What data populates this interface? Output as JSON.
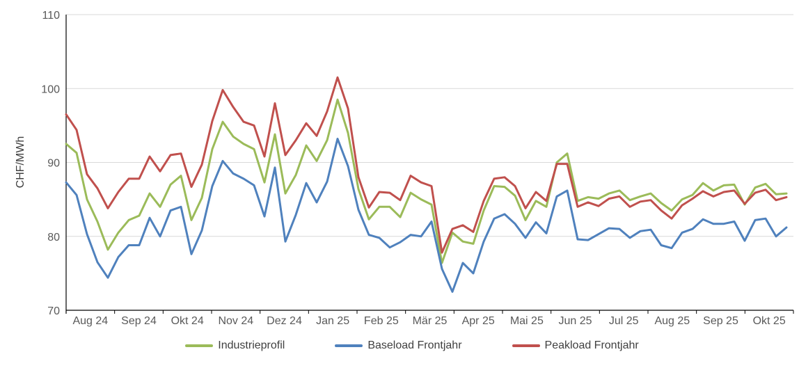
{
  "chart_data": {
    "type": "line",
    "title": "",
    "ylabel": "CHF/MWh",
    "ylim": [
      70,
      110
    ],
    "y_ticks": [
      70,
      80,
      90,
      100,
      110
    ],
    "x_tick_labels": [
      "Aug 24",
      "Sep 24",
      "Okt 24",
      "Nov 24",
      "Dez 24",
      "Jan 25",
      "Feb 25",
      "Mär 25",
      "Apr 25",
      "Mai 25",
      "Jun 25",
      "Jul 25",
      "Aug 25",
      "Sep 25",
      "Okt 25"
    ],
    "grid": "horizontal",
    "legend_position": "bottom",
    "axis_color": "#000000",
    "gridline_color": "#d9d9d9",
    "tick_label_color": "#595959",
    "series": [
      {
        "name": "Industrieprofil",
        "color": "#9BBB59",
        "values": [
          92.5,
          91.3,
          85.0,
          82.0,
          78.2,
          80.5,
          82.2,
          82.8,
          85.8,
          84.0,
          87.0,
          88.2,
          82.2,
          85.2,
          91.8,
          95.5,
          93.5,
          92.5,
          91.8,
          87.3,
          93.8,
          85.8,
          88.3,
          92.3,
          90.2,
          93.0,
          98.5,
          94.0,
          86.4,
          82.3,
          84.0,
          84.0,
          82.6,
          85.9,
          85.0,
          84.3,
          76.4,
          80.5,
          79.3,
          79.0,
          83.5,
          86.8,
          86.7,
          85.5,
          82.2,
          84.8,
          84.0,
          90.0,
          91.2,
          84.8,
          85.3,
          85.1,
          85.8,
          86.2,
          84.9,
          85.4,
          85.8,
          84.5,
          83.5,
          85.0,
          85.6,
          87.2,
          86.2,
          86.9,
          87.0,
          84.3,
          86.6,
          87.1,
          85.7,
          85.8
        ]
      },
      {
        "name": "Baseload Frontjahr",
        "color": "#4F81BD",
        "values": [
          87.3,
          85.6,
          80.3,
          76.5,
          74.4,
          77.2,
          78.8,
          78.8,
          82.5,
          80.0,
          83.5,
          84.0,
          77.6,
          80.8,
          86.8,
          90.2,
          88.5,
          87.8,
          86.9,
          82.7,
          89.3,
          79.3,
          82.9,
          87.2,
          84.6,
          87.4,
          93.2,
          89.5,
          83.6,
          80.2,
          79.8,
          78.5,
          79.2,
          80.2,
          80.0,
          82.0,
          75.6,
          72.5,
          76.4,
          75.0,
          79.3,
          82.4,
          83.0,
          81.7,
          79.8,
          81.9,
          80.4,
          85.4,
          86.2,
          79.6,
          79.5,
          80.3,
          81.1,
          81.0,
          79.8,
          80.7,
          80.9,
          78.8,
          78.4,
          80.5,
          81.0,
          82.3,
          81.7,
          81.7,
          82.0,
          79.4,
          82.2,
          82.4,
          80.0,
          81.2
        ]
      },
      {
        "name": "Peakload Frontjahr",
        "color": "#C0504D",
        "values": [
          96.5,
          94.4,
          88.4,
          86.5,
          83.8,
          86.0,
          87.8,
          87.8,
          90.8,
          88.8,
          91.0,
          91.2,
          86.7,
          89.7,
          95.6,
          99.8,
          97.5,
          95.5,
          95.0,
          90.8,
          98.0,
          91.0,
          93.0,
          95.3,
          93.6,
          96.9,
          101.5,
          97.3,
          88.0,
          83.9,
          86.0,
          85.9,
          84.9,
          88.2,
          87.3,
          86.8,
          77.8,
          81.0,
          81.5,
          80.6,
          84.8,
          87.8,
          88.0,
          86.8,
          83.8,
          86.0,
          84.8,
          89.8,
          89.8,
          84.0,
          84.6,
          84.1,
          85.1,
          85.4,
          84.0,
          84.7,
          84.9,
          83.5,
          82.4,
          84.2,
          85.1,
          86.1,
          85.4,
          86.0,
          86.2,
          84.4,
          85.9,
          86.3,
          84.9,
          85.3
        ]
      }
    ]
  }
}
